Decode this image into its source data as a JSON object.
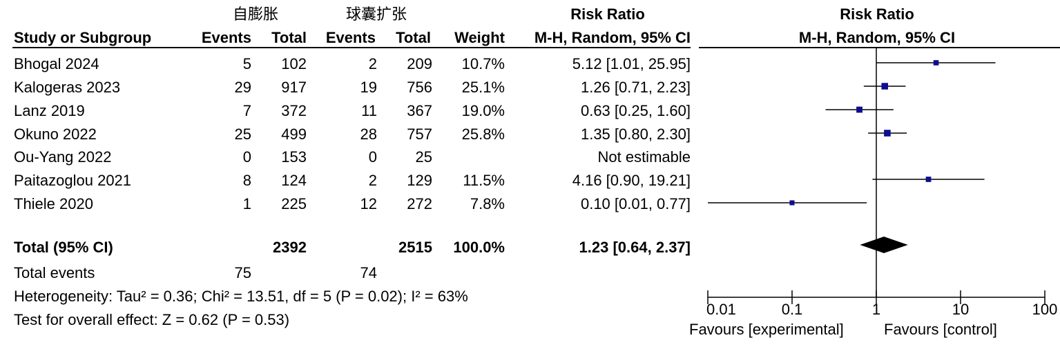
{
  "headers": {
    "group1": "自膨胀",
    "group2": "球囊扩张",
    "risk_ratio_table": "Risk Ratio",
    "risk_ratio_plot": "Risk Ratio",
    "study": "Study or Subgroup",
    "events1": "Events",
    "total1": "Total",
    "events2": "Events",
    "total2": "Total",
    "weight": "Weight",
    "method_table": "M-H, Random, 95% CI",
    "method_plot": "M-H, Random, 95% CI"
  },
  "studies": [
    {
      "name": "Bhogal 2024",
      "e1": "5",
      "t1": "102",
      "e2": "2",
      "t2": "209",
      "weight": "10.7%",
      "ci": "5.12 [1.01, 25.95]"
    },
    {
      "name": "Kalogeras 2023",
      "e1": "29",
      "t1": "917",
      "e2": "19",
      "t2": "756",
      "weight": "25.1%",
      "ci": "1.26 [0.71, 2.23]"
    },
    {
      "name": "Lanz 2019",
      "e1": "7",
      "t1": "372",
      "e2": "11",
      "t2": "367",
      "weight": "19.0%",
      "ci": "0.63 [0.25, 1.60]"
    },
    {
      "name": "Okuno 2022",
      "e1": "25",
      "t1": "499",
      "e2": "28",
      "t2": "757",
      "weight": "25.8%",
      "ci": "1.35 [0.80, 2.30]"
    },
    {
      "name": "Ou-Yang  2022",
      "e1": "0",
      "t1": "153",
      "e2": "0",
      "t2": "25",
      "weight": "",
      "ci": "Not estimable"
    },
    {
      "name": "Paitazoglou 2021",
      "e1": "8",
      "t1": "124",
      "e2": "2",
      "t2": "129",
      "weight": "11.5%",
      "ci": "4.16 [0.90, 19.21]"
    },
    {
      "name": "Thiele 2020",
      "e1": "1",
      "t1": "225",
      "e2": "12",
      "t2": "272",
      "weight": "7.8%",
      "ci": "0.10 [0.01, 0.77]"
    }
  ],
  "total": {
    "label": "Total (95% CI)",
    "t1": "2392",
    "t2": "2515",
    "weight": "100.0%",
    "ci": "1.23 [0.64, 2.37]"
  },
  "total_events": {
    "label": "Total events",
    "e1": "75",
    "e2": "74"
  },
  "heterogeneity": "Heterogeneity: Tau² = 0.36; Chi² = 13.51, df = 5 (P = 0.02); I² = 63%",
  "overall_effect": "Test for overall effect: Z = 0.62 (P = 0.53)",
  "favours_left": "Favours [experimental]",
  "favours_right": "Favours [control]",
  "chart_data": {
    "type": "forest",
    "x_scale": "log",
    "xlim": [
      0.01,
      100
    ],
    "x_ticks": [
      0.01,
      0.1,
      1,
      10,
      100
    ],
    "x_tick_labels": [
      "0.01",
      "0.1",
      "1",
      "10",
      "100"
    ],
    "reference_line": 1,
    "points": [
      {
        "study": "Bhogal 2024",
        "rr": 5.12,
        "lo": 1.01,
        "hi": 25.95,
        "weight": 10.7
      },
      {
        "study": "Kalogeras 2023",
        "rr": 1.26,
        "lo": 0.71,
        "hi": 2.23,
        "weight": 25.1
      },
      {
        "study": "Lanz 2019",
        "rr": 0.63,
        "lo": 0.25,
        "hi": 1.6,
        "weight": 19.0
      },
      {
        "study": "Okuno 2022",
        "rr": 1.35,
        "lo": 0.8,
        "hi": 2.3,
        "weight": 25.8
      },
      {
        "study": "Ou-Yang  2022",
        "rr": null,
        "lo": null,
        "hi": null,
        "weight": null
      },
      {
        "study": "Paitazoglou 2021",
        "rr": 4.16,
        "lo": 0.9,
        "hi": 19.21,
        "weight": 11.5
      },
      {
        "study": "Thiele 2020",
        "rr": 0.1,
        "lo": 0.01,
        "hi": 0.77,
        "weight": 7.8
      }
    ],
    "pooled": {
      "rr": 1.23,
      "lo": 0.64,
      "hi": 2.37
    },
    "colors": {
      "marker": "#0d0d8f",
      "line": "#000000"
    }
  }
}
